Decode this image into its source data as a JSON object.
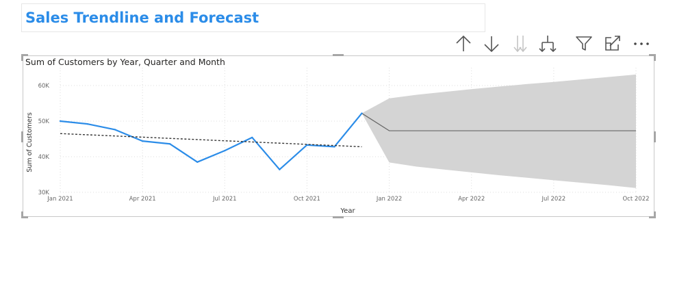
{
  "page": {
    "title": "Sales Trendline and Forecast"
  },
  "toolbar": {
    "items": [
      {
        "name": "drill-up",
        "icon": "arrow-up-icon",
        "enabled": true
      },
      {
        "name": "drill-down",
        "icon": "arrow-down-icon",
        "enabled": true
      },
      {
        "name": "go-to-next-level",
        "icon": "double-arrow-down-icon",
        "enabled": false
      },
      {
        "name": "expand-next-level",
        "icon": "fork-arrow-down-icon",
        "enabled": true
      },
      {
        "name": "filter",
        "icon": "filter-icon",
        "enabled": true
      },
      {
        "name": "focus-mode",
        "icon": "focus-mode-icon",
        "enabled": true
      },
      {
        "name": "more-options",
        "icon": "ellipsis-icon",
        "enabled": true
      }
    ]
  },
  "colors": {
    "title": "#2b8ce8",
    "actual_line": "#2b8ce8",
    "trend_line": "#333333",
    "forecast_line": "#666666",
    "forecast_band": "#d4d4d4",
    "grid": "#dcdcdc",
    "axis_text": "#666666"
  },
  "chart_data": {
    "type": "line",
    "title": "Sum of Customers by Year, Quarter and Month",
    "xlabel": "Year",
    "ylabel": "Sum of Customers",
    "ylim": [
      30000,
      65000
    ],
    "y_ticks": [
      30000,
      40000,
      50000,
      60000
    ],
    "y_tick_labels": [
      "30K",
      "40K",
      "50K",
      "60K"
    ],
    "x_range": [
      "2021-01",
      "2022-10"
    ],
    "x_ticks": [
      "2021-01",
      "2021-04",
      "2021-07",
      "2021-10",
      "2022-01",
      "2022-04",
      "2022-07",
      "2022-10"
    ],
    "x_tick_labels": [
      "Jan 2021",
      "Apr 2021",
      "Jul 2021",
      "Oct 2021",
      "Jan 2022",
      "Apr 2022",
      "Jul 2022",
      "Oct 2022"
    ],
    "grid": true,
    "series": [
      {
        "kind": "actual",
        "x": [
          "2021-01",
          "2021-02",
          "2021-03",
          "2021-04",
          "2021-05",
          "2021-06",
          "2021-07",
          "2021-08",
          "2021-09",
          "2021-10",
          "2021-11",
          "2021-12"
        ],
        "values": [
          50000,
          49200,
          47600,
          44400,
          43600,
          38500,
          41700,
          45400,
          36400,
          43300,
          42800,
          52200
        ]
      },
      {
        "kind": "trend",
        "x": [
          "2021-01",
          "2021-12"
        ],
        "values": [
          46500,
          42800
        ]
      },
      {
        "kind": "forecast",
        "x": [
          "2021-12",
          "2022-01",
          "2022-02",
          "2022-03",
          "2022-04",
          "2022-05",
          "2022-06",
          "2022-07",
          "2022-08",
          "2022-09",
          "2022-10"
        ],
        "values": [
          52200,
          47300,
          47300,
          47300,
          47300,
          47300,
          47300,
          47300,
          47300,
          47300,
          47300
        ],
        "upper": [
          52200,
          56400,
          57400,
          58200,
          59000,
          59700,
          60400,
          61000,
          61700,
          62400,
          63100
        ],
        "lower": [
          52200,
          38400,
          37200,
          36400,
          35600,
          34800,
          34100,
          33400,
          32700,
          32000,
          31200
        ]
      }
    ]
  }
}
